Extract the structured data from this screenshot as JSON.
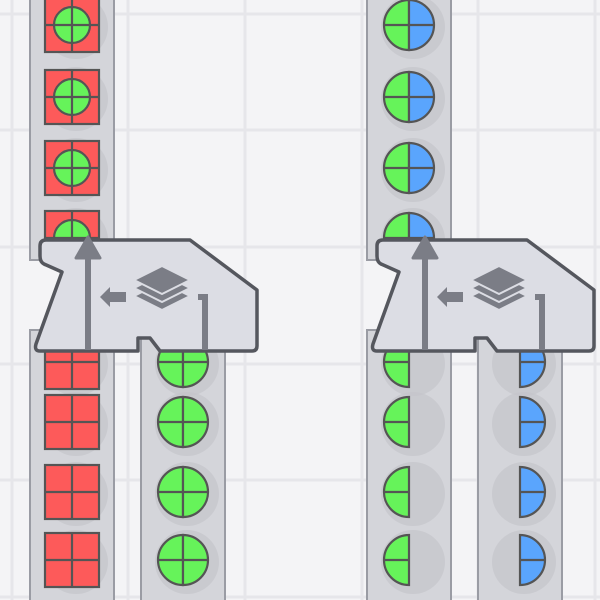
{
  "colors": {
    "background": "#f4f4f6",
    "grid": "#e6e6ea",
    "belt": "#d4d5da",
    "belt_edge": "#9a9ca4",
    "machine_fill": "#dcdde4",
    "machine_stroke": "#55575e",
    "icon": "#7b7d86",
    "red": "#fd5a5a",
    "green": "#66f35a",
    "blue": "#5aa5fd",
    "outline": "#555555"
  },
  "machines": [
    {
      "name": "cutter-left",
      "icon": "stacker-layers-icon",
      "input_belt_items": [
        "red-square-with-green-circle",
        "red-square-with-green-circle",
        "red-square-with-green-circle",
        "red-square-with-green-circle"
      ],
      "output_left_items": [
        "red-square",
        "red-square",
        "red-square",
        "red-square"
      ],
      "output_right_items": [
        "green-circle",
        "green-circle",
        "green-circle",
        "green-circle"
      ]
    },
    {
      "name": "cutter-right",
      "icon": "stacker-layers-icon",
      "input_belt_items": [
        "green-blue-circle",
        "green-blue-circle",
        "green-blue-circle",
        "green-blue-circle"
      ],
      "output_left_items": [
        "green-left-half",
        "green-left-half",
        "green-left-half",
        "green-left-half"
      ],
      "output_right_items": [
        "blue-right-half",
        "blue-right-half",
        "blue-right-half",
        "blue-right-half"
      ]
    }
  ]
}
